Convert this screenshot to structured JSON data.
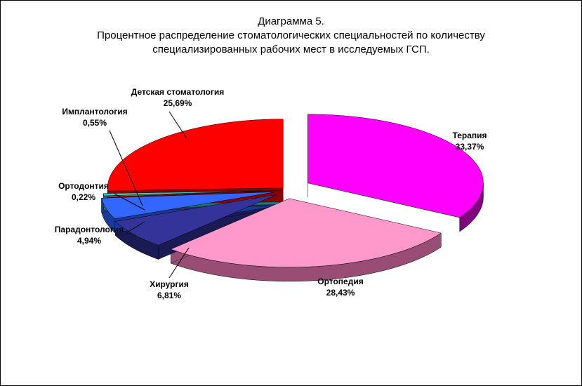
{
  "title": {
    "line1": "Диаграмма 5.",
    "line2": "Процентное распределение стоматологических специальностей по количеству",
    "line3": "специализированных рабочих мест в исследуемых ГСП."
  },
  "chart_data": {
    "type": "pie",
    "title": "Диаграмма 5. Процентное распределение стоматологических специальностей по количеству специализированных рабочих мест в исследуемых ГСП.",
    "three_d": true,
    "exploded": true,
    "slices": [
      {
        "label": "Терапия",
        "value": 33.37,
        "value_label": "33,37%",
        "color": "#ff00ff",
        "side_color": "#800080"
      },
      {
        "label": "Ортопедия",
        "value": 28.43,
        "value_label": "28,43%",
        "color": "#ff99cc",
        "side_color": "#994d75"
      },
      {
        "label": "Хирургия",
        "value": 6.81,
        "value_label": "6,81%",
        "color": "#333399",
        "side_color": "#1a1a55"
      },
      {
        "label": "Парадонтология",
        "value": 4.94,
        "value_label": "4,94%",
        "color": "#3366ff",
        "side_color": "#1a3a99"
      },
      {
        "label": "Ортодонтия",
        "value": 0.22,
        "value_label": "0,22%",
        "color": "#ff9900",
        "side_color": "#996000"
      },
      {
        "label": "Имплантология",
        "value": 0.55,
        "value_label": "0,55%",
        "color": "#33cccc",
        "side_color": "#1a7a7a"
      },
      {
        "label": "Детская стоматология",
        "value": 25.69,
        "value_label": "25,69%",
        "color": "#ff0000",
        "side_color": "#880000"
      }
    ]
  }
}
